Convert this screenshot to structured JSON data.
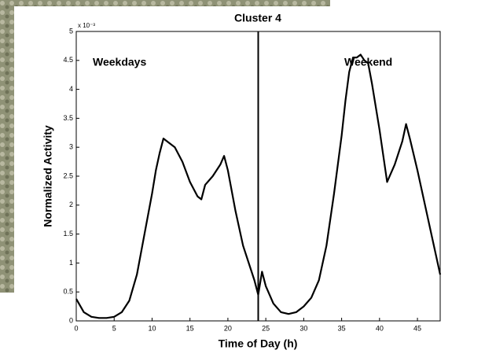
{
  "chart_data": {
    "type": "line",
    "title": "Cluster 4",
    "x_label": "Time of Day (h)",
    "y_label": "Normalized Activity",
    "y_multiplier": "x 10⁻³",
    "annotations": [
      "Weekdays",
      "Weekend"
    ],
    "divider_x": 24,
    "color": "#000000",
    "x": [
      0,
      1,
      2,
      3,
      4,
      5,
      6,
      7,
      8,
      9,
      10,
      10.5,
      11,
      11.5,
      12,
      13,
      14,
      15,
      16,
      16.5,
      17,
      18,
      19,
      19.5,
      20,
      21,
      22,
      23,
      23.5,
      24,
      24.5,
      25,
      26,
      27,
      28,
      29,
      30,
      31,
      32,
      33,
      34,
      35,
      35.5,
      36,
      36.5,
      37,
      37.5,
      38,
      38.5,
      39,
      40,
      41,
      42,
      43,
      43.5,
      44,
      45,
      46,
      47,
      48
    ],
    "values": [
      0.38,
      0.15,
      0.07,
      0.05,
      0.05,
      0.07,
      0.15,
      0.35,
      0.8,
      1.5,
      2.2,
      2.6,
      2.9,
      3.15,
      3.1,
      3.0,
      2.75,
      2.4,
      2.15,
      2.1,
      2.35,
      2.5,
      2.7,
      2.85,
      2.6,
      1.9,
      1.3,
      0.9,
      0.7,
      0.45,
      0.85,
      0.6,
      0.3,
      0.15,
      0.12,
      0.15,
      0.25,
      0.4,
      0.7,
      1.3,
      2.2,
      3.2,
      3.8,
      4.3,
      4.55,
      4.55,
      4.6,
      4.5,
      4.45,
      4.1,
      3.3,
      2.4,
      2.7,
      3.1,
      3.4,
      3.15,
      2.6,
      2.0,
      1.4,
      0.8
    ],
    "xlim": [
      0,
      48
    ],
    "xticks": [
      0,
      5,
      10,
      15,
      20,
      25,
      30,
      35,
      40,
      45
    ],
    "ylim": [
      0,
      5
    ],
    "yticks": [
      0,
      0.5,
      1,
      1.5,
      2,
      2.5,
      3,
      3.5,
      4,
      4.5,
      5
    ]
  }
}
